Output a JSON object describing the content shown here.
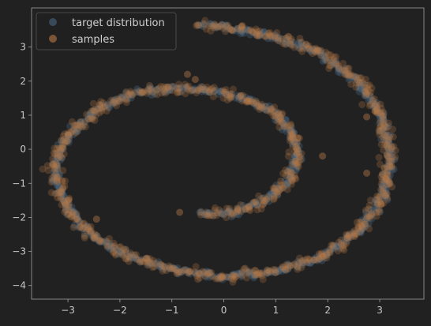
{
  "chart_data": {
    "type": "scatter",
    "title": "",
    "xlabel": "",
    "ylabel": "",
    "xlim": [
      -3.7,
      3.85
    ],
    "ylim": [
      -4.4,
      4.15
    ],
    "grid": false,
    "legend": {
      "placement": "top-left"
    },
    "xticks": [
      -3,
      -2,
      -1,
      0,
      1,
      2,
      3
    ],
    "yticks": [
      -4,
      -3,
      -2,
      -1,
      0,
      1,
      2,
      3
    ],
    "xtick_labels": [
      "−3",
      "−2",
      "−1",
      "0",
      "1",
      "2",
      "3"
    ],
    "ytick_labels": [
      "−4",
      "−3",
      "−2",
      "−1",
      "0",
      "1",
      "2",
      "3"
    ],
    "series": [
      {
        "name": "target distribution",
        "color": "#4a6680",
        "curve_points": [
          [
            -0.45,
            -1.9
          ],
          [
            0.2,
            -1.85
          ],
          [
            0.75,
            -1.55
          ],
          [
            1.2,
            -1.0
          ],
          [
            1.4,
            -0.3
          ],
          [
            1.35,
            0.4
          ],
          [
            1.0,
            1.05
          ],
          [
            0.4,
            1.5
          ],
          [
            -0.3,
            1.75
          ],
          [
            -1.0,
            1.8
          ],
          [
            -1.7,
            1.65
          ],
          [
            -2.3,
            1.3
          ],
          [
            -2.8,
            0.7
          ],
          [
            -3.15,
            0.0
          ],
          [
            -3.25,
            -0.8
          ],
          [
            -3.05,
            -1.65
          ],
          [
            -2.6,
            -2.45
          ],
          [
            -1.9,
            -3.1
          ],
          [
            -1.0,
            -3.55
          ],
          [
            0.0,
            -3.75
          ],
          [
            1.0,
            -3.6
          ],
          [
            1.9,
            -3.15
          ],
          [
            2.6,
            -2.4
          ],
          [
            3.05,
            -1.4
          ],
          [
            3.2,
            -0.3
          ],
          [
            3.05,
            0.95
          ],
          [
            2.55,
            2.05
          ],
          [
            1.8,
            2.85
          ],
          [
            0.9,
            3.35
          ],
          [
            0.0,
            3.6
          ],
          [
            -0.45,
            3.65
          ]
        ]
      },
      {
        "name": "samples",
        "color": "#b87a48",
        "curve_points": [
          [
            -0.45,
            -1.9
          ],
          [
            0.2,
            -1.85
          ],
          [
            0.75,
            -1.55
          ],
          [
            1.2,
            -1.0
          ],
          [
            1.4,
            -0.3
          ],
          [
            1.35,
            0.4
          ],
          [
            1.0,
            1.05
          ],
          [
            0.4,
            1.5
          ],
          [
            -0.3,
            1.75
          ],
          [
            -1.0,
            1.8
          ],
          [
            -1.7,
            1.65
          ],
          [
            -2.3,
            1.3
          ],
          [
            -2.8,
            0.7
          ],
          [
            -3.15,
            0.0
          ],
          [
            -3.25,
            -0.8
          ],
          [
            -3.05,
            -1.65
          ],
          [
            -2.6,
            -2.45
          ],
          [
            -1.9,
            -3.1
          ],
          [
            -1.0,
            -3.55
          ],
          [
            0.0,
            -3.75
          ],
          [
            1.0,
            -3.6
          ],
          [
            1.9,
            -3.15
          ],
          [
            2.6,
            -2.4
          ],
          [
            3.05,
            -1.4
          ],
          [
            3.2,
            -0.3
          ],
          [
            3.05,
            0.95
          ],
          [
            2.55,
            2.05
          ],
          [
            1.8,
            2.85
          ],
          [
            0.9,
            3.35
          ],
          [
            0.0,
            3.6
          ],
          [
            -0.45,
            3.65
          ]
        ],
        "outliers": [
          [
            -0.7,
            2.2
          ],
          [
            -0.85,
            -1.85
          ],
          [
            -2.45,
            -2.05
          ],
          [
            1.9,
            -0.2
          ],
          [
            2.75,
            -0.7
          ],
          [
            2.75,
            0.95
          ],
          [
            -0.55,
            2.05
          ]
        ]
      }
    ]
  }
}
